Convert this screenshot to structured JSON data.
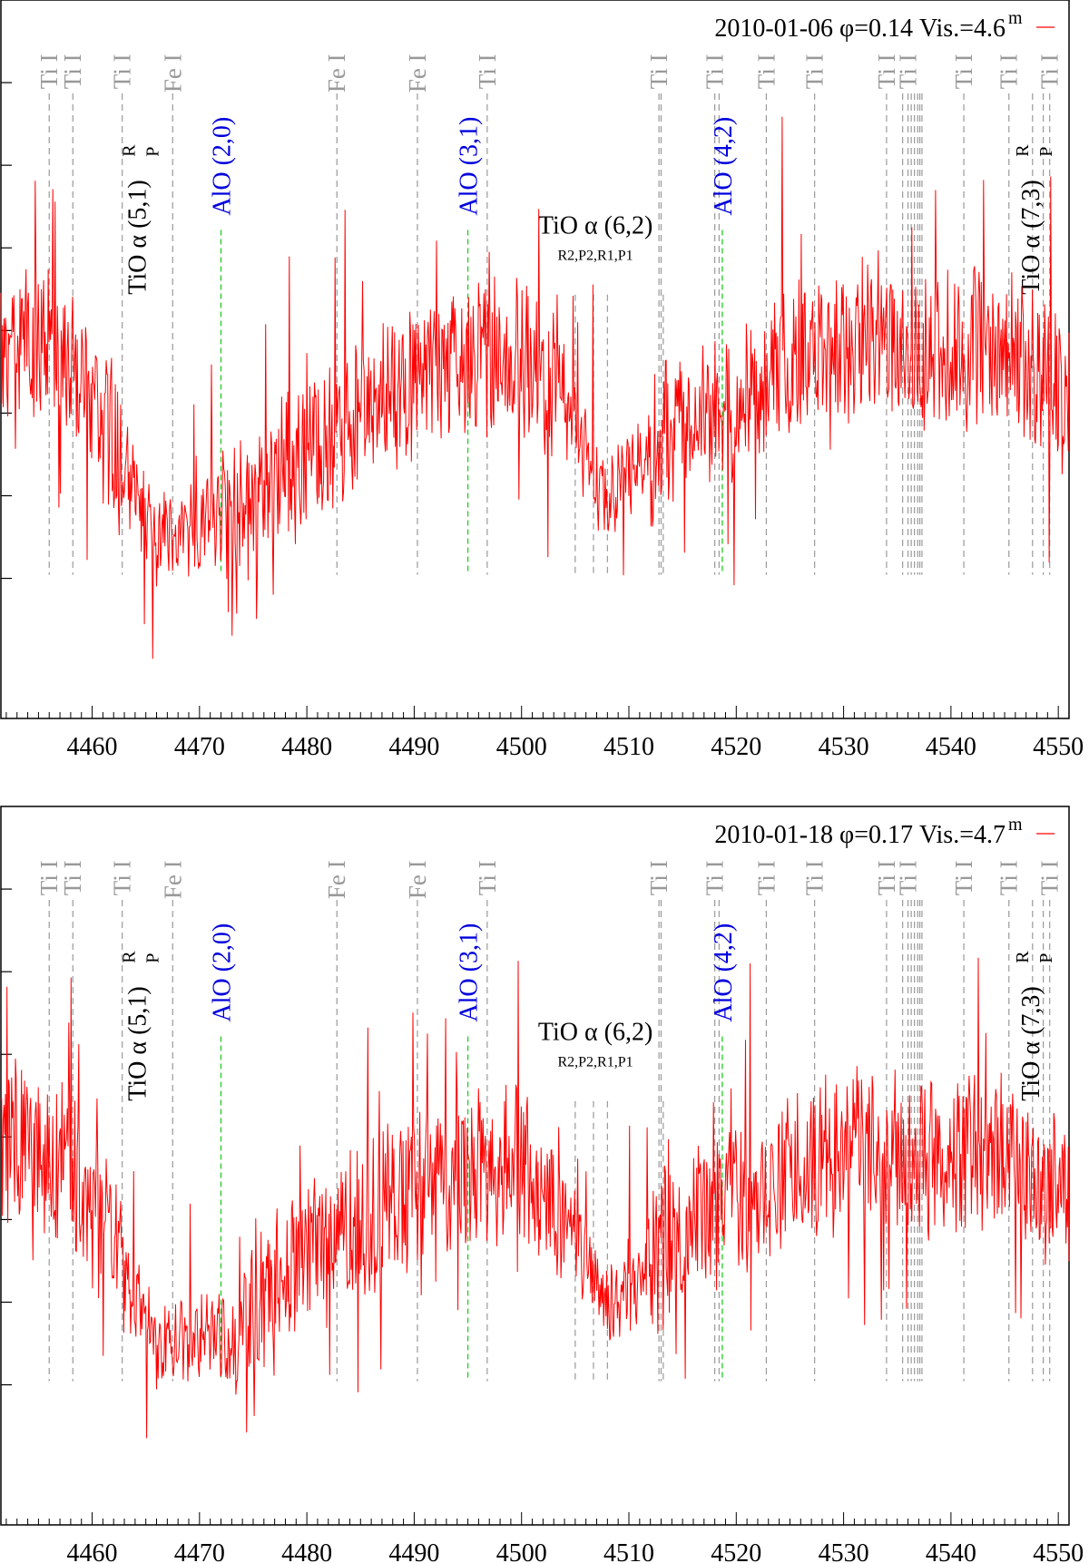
{
  "chart_data": [
    {
      "type": "line",
      "legend": "2010-01-06 φ=0.14 Vis.=4.6",
      "legend_sup": "m",
      "legend_position": "top-right",
      "series": [
        {
          "name": "2010-01-06",
          "color": "#ff0000",
          "seed": 7
        }
      ],
      "xlim": [
        4451.5,
        4551
      ],
      "xticks": [
        4460,
        4470,
        4480,
        4490,
        4500,
        4510,
        4520,
        4530,
        4540,
        4550
      ],
      "xlabel": "",
      "ylabel": "",
      "grid": false
    },
    {
      "type": "line",
      "legend": "2010-01-18 φ=0.17 Vis.=4.7",
      "legend_sup": "m",
      "legend_position": "top-right",
      "series": [
        {
          "name": "2010-01-18",
          "color": "#ff0000",
          "seed": 13
        }
      ],
      "xlim": [
        4451.5,
        4551
      ],
      "xticks": [
        4460,
        4470,
        4480,
        4490,
        4500,
        4510,
        4520,
        4530,
        4540,
        4550
      ],
      "xlabel": "",
      "ylabel": "",
      "grid": false
    }
  ],
  "atomic_lines": [
    {
      "label": "Ti I",
      "x": 4456.0
    },
    {
      "label": "Ti I",
      "x": 4458.2
    },
    {
      "label": "Ti I",
      "x": 4462.8
    },
    {
      "label": "Fe I",
      "x": 4467.5
    },
    {
      "label": "Fe I",
      "x": 4482.8
    },
    {
      "label": "Fe I",
      "x": 4490.3
    },
    {
      "label": "Ti I",
      "x": 4496.8
    },
    {
      "label": "Ti I",
      "x": 4512.8
    },
    {
      "label": "Ti I",
      "x": 4518.0
    },
    {
      "label": "Ti I",
      "x": 4522.8
    },
    {
      "label": "Ti I",
      "x": 4527.3
    },
    {
      "label": "Ti I",
      "x": 4534.0
    },
    {
      "label": "Ti I",
      "x": 4536.0
    },
    {
      "label": "Ti I",
      "x": 4541.2
    },
    {
      "label": "Ti I",
      "x": 4545.4
    },
    {
      "label": "Ti I",
      "x": 4549.2
    }
  ],
  "extra_line_positions": [
    4535.5,
    4536.3,
    4536.6,
    4536.9,
    4537.1,
    4537.3,
    4547.6,
    4548.6,
    4513.0,
    4518.4
  ],
  "molecular_bands": [
    {
      "label": "AlO (2,0)",
      "x": 4472.0
    },
    {
      "label": "AlO (3,1)",
      "x": 4495.0
    },
    {
      "label": "AlO (4,2)",
      "x": 4518.7
    }
  ],
  "tio_bands": [
    {
      "label": "TiO α (5,1)",
      "sup": "R",
      "sub": "P",
      "x": 4465.0
    },
    {
      "label": "TiO α (7,3)",
      "sup": "R",
      "sub": "P",
      "x": 4548.2
    }
  ],
  "tio_62": {
    "label": "TiO α (6,2)",
    "sublabel": "R2,P2,R1,P1",
    "heads": [
      4505.0,
      4506.7,
      4508.0,
      4513.2
    ]
  },
  "colors": {
    "spectrum": "#ff0000",
    "atomic_line": "#999999",
    "atomic_label": "#999999",
    "alo": "#0000dd",
    "alo_line": "#22cc22",
    "tio": "#000000",
    "axes": "#000000"
  }
}
